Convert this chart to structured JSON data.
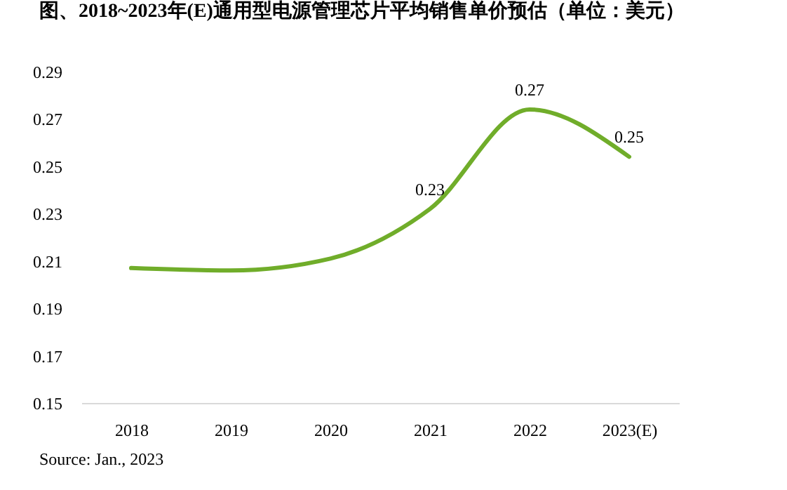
{
  "chart_data": {
    "type": "line",
    "title": "图、2018~2023年(E)通用型电源管理芯片平均销售单价预估（单位：美元）",
    "categories": [
      "2018",
      "2019",
      "2020",
      "2021",
      "2022",
      "2023(E)"
    ],
    "series": [
      {
        "color": "#70ad2a",
        "values": [
          0.207,
          0.206,
          0.211,
          0.232,
          0.274,
          0.254
        ],
        "value_labels": [
          null,
          null,
          null,
          "0.23",
          "0.27",
          "0.25"
        ]
      }
    ],
    "ylim": [
      0.15,
      0.29
    ],
    "yticks": [
      0.15,
      0.17,
      0.19,
      0.21,
      0.23,
      0.25,
      0.27,
      0.29
    ],
    "grid": false,
    "marker": "none",
    "line_style": "solid",
    "annotations": [
      "Source: Jan., 2023"
    ]
  }
}
